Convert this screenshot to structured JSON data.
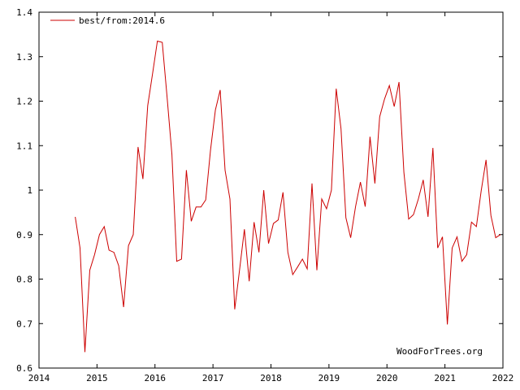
{
  "colors": {
    "series": "#cc0000",
    "axis": "#000000",
    "background": "#ffffff"
  },
  "credit": "WoodForTrees.org",
  "chart_data": {
    "type": "line",
    "title": "",
    "xlabel": "",
    "ylabel": "",
    "xlim": [
      2014,
      2022
    ],
    "ylim": [
      0.6,
      1.4
    ],
    "xticks": [
      2014,
      2015,
      2016,
      2017,
      2018,
      2019,
      2020,
      2021,
      2022
    ],
    "xtick_labels": [
      "2014",
      "2015",
      "2016",
      "2017",
      "2018",
      "2019",
      "2020",
      "2021",
      "2022"
    ],
    "yticks": [
      0.6,
      0.7,
      0.8,
      0.9,
      1.0,
      1.1,
      1.2,
      1.3,
      1.4
    ],
    "ytick_labels": [
      "0.6",
      "0.7",
      "0.8",
      "0.9",
      "1",
      "1.1",
      "1.2",
      "1.3",
      "1.4"
    ],
    "grid": false,
    "legend_position": "top-left",
    "series": [
      {
        "name": "best/from:2014.6",
        "x": [
          2014.625,
          2014.708,
          2014.792,
          2014.875,
          2014.958,
          2015.042,
          2015.125,
          2015.208,
          2015.292,
          2015.375,
          2015.458,
          2015.542,
          2015.625,
          2015.708,
          2015.792,
          2015.875,
          2015.958,
          2016.042,
          2016.125,
          2016.208,
          2016.292,
          2016.375,
          2016.458,
          2016.542,
          2016.625,
          2016.708,
          2016.792,
          2016.875,
          2016.958,
          2017.042,
          2017.125,
          2017.208,
          2017.292,
          2017.375,
          2017.458,
          2017.542,
          2017.625,
          2017.708,
          2017.792,
          2017.875,
          2017.958,
          2018.042,
          2018.125,
          2018.208,
          2018.292,
          2018.375,
          2018.458,
          2018.542,
          2018.625,
          2018.708,
          2018.792,
          2018.875,
          2018.958,
          2019.042,
          2019.125,
          2019.208,
          2019.292,
          2019.375,
          2019.458,
          2019.542,
          2019.625,
          2019.708,
          2019.792,
          2019.875,
          2019.958,
          2020.042,
          2020.125,
          2020.208,
          2020.292,
          2020.375,
          2020.458,
          2020.542,
          2020.625,
          2020.708,
          2020.792,
          2020.875,
          2020.958,
          2021.042,
          2021.125,
          2021.208,
          2021.292,
          2021.375,
          2021.458,
          2021.542,
          2021.625,
          2021.708,
          2021.792,
          2021.875,
          2021.958
        ],
        "y": [
          0.94,
          0.87,
          0.636,
          0.82,
          0.855,
          0.9,
          0.918,
          0.865,
          0.86,
          0.83,
          0.737,
          0.875,
          0.9,
          1.097,
          1.025,
          1.19,
          1.262,
          1.335,
          1.332,
          1.21,
          1.08,
          0.84,
          0.845,
          1.045,
          0.93,
          0.962,
          0.962,
          0.978,
          1.09,
          1.18,
          1.225,
          1.045,
          0.98,
          0.732,
          0.82,
          0.912,
          0.795,
          0.928,
          0.86,
          1.0,
          0.88,
          0.925,
          0.933,
          0.995,
          0.86,
          0.81,
          0.827,
          0.845,
          0.823,
          1.015,
          0.82,
          0.98,
          0.958,
          1.0,
          1.228,
          1.138,
          0.938,
          0.893,
          0.963,
          1.018,
          0.963,
          1.12,
          1.015,
          1.165,
          1.205,
          1.235,
          1.188,
          1.243,
          1.04,
          0.935,
          0.945,
          0.98,
          1.023,
          0.94,
          1.095,
          0.87,
          0.895,
          0.698,
          0.87,
          0.895,
          0.84,
          0.855,
          0.928,
          0.918,
          0.998,
          1.068,
          0.943,
          0.893,
          0.9
        ]
      }
    ]
  }
}
